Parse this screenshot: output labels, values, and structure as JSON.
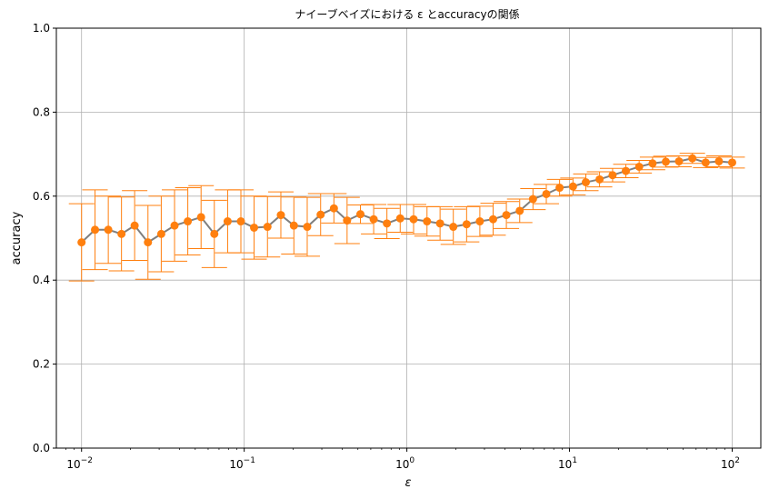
{
  "chart_data": {
    "type": "line",
    "title": "ナイーブベイズにおける ε とaccuracyの関係",
    "xlabel": "ε",
    "ylabel": "accuracy",
    "xscale": "log",
    "xlim": [
      0.007,
      150
    ],
    "ylim": [
      0.0,
      1.0
    ],
    "grid": true,
    "xticks": [
      {
        "value": 0.01,
        "base": "10",
        "exp": "−2"
      },
      {
        "value": 0.1,
        "base": "10",
        "exp": "−1"
      },
      {
        "value": 1,
        "base": "10",
        "exp": "0"
      },
      {
        "value": 10,
        "base": "10",
        "exp": "1"
      },
      {
        "value": 100,
        "base": "10",
        "exp": "2"
      }
    ],
    "yticks": [
      "0.0",
      "0.2",
      "0.4",
      "0.6",
      "0.8",
      "1.0"
    ],
    "colors": {
      "line": "#7f7f7f",
      "marker": "#ff7f0e",
      "errorbar": "#ff7f0e",
      "grid": "#b0b0b0"
    },
    "series": [
      {
        "x": [
          0.01,
          0.0121,
          0.0146,
          0.0176,
          0.0212,
          0.0256,
          0.0309,
          0.0373,
          0.045,
          0.0543,
          0.0655,
          0.0791,
          0.0954,
          0.115,
          0.139,
          0.168,
          0.202,
          0.244,
          0.295,
          0.356,
          0.429,
          0.518,
          0.625,
          0.754,
          0.91,
          1.1,
          1.33,
          1.6,
          1.93,
          2.33,
          2.81,
          3.39,
          4.09,
          4.94,
          5.96,
          7.2,
          8.69,
          10.5,
          12.6,
          15.3,
          18.4,
          22.2,
          26.8,
          32.4,
          39.1,
          47.1,
          56.9,
          68.7,
          82.9,
          100
        ],
        "y": [
          0.49,
          0.52,
          0.52,
          0.51,
          0.53,
          0.49,
          0.51,
          0.53,
          0.54,
          0.55,
          0.51,
          0.54,
          0.54,
          0.525,
          0.527,
          0.555,
          0.53,
          0.527,
          0.556,
          0.571,
          0.542,
          0.557,
          0.545,
          0.535,
          0.547,
          0.545,
          0.54,
          0.535,
          0.527,
          0.533,
          0.54,
          0.545,
          0.555,
          0.565,
          0.593,
          0.605,
          0.62,
          0.623,
          0.633,
          0.64,
          0.65,
          0.66,
          0.67,
          0.678,
          0.682,
          0.683,
          0.69,
          0.68,
          0.683,
          0.68
        ],
        "yerr": [
          0.092,
          0.095,
          0.08,
          0.088,
          0.083,
          0.088,
          0.09,
          0.085,
          0.08,
          0.075,
          0.08,
          0.075,
          0.075,
          0.075,
          0.072,
          0.055,
          0.068,
          0.07,
          0.05,
          0.035,
          0.055,
          0.022,
          0.035,
          0.036,
          0.033,
          0.035,
          0.035,
          0.04,
          0.042,
          0.042,
          0.036,
          0.038,
          0.032,
          0.028,
          0.025,
          0.023,
          0.02,
          0.02,
          0.02,
          0.018,
          0.016,
          0.016,
          0.015,
          0.015,
          0.013,
          0.013,
          0.012,
          0.012,
          0.013,
          0.013
        ]
      }
    ]
  }
}
